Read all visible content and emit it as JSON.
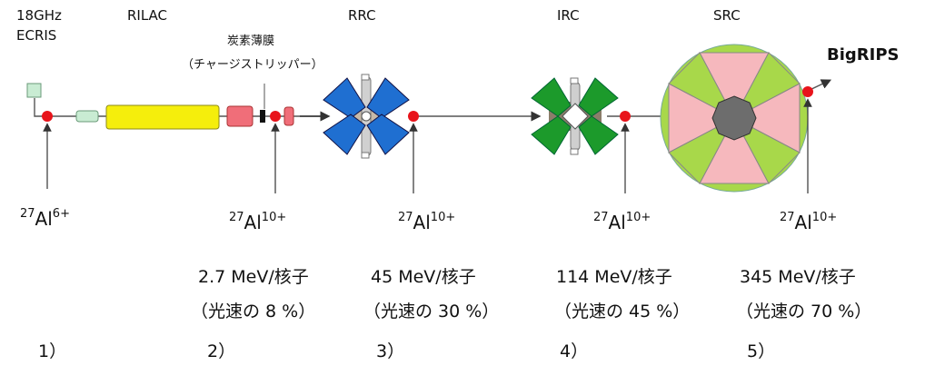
{
  "labels": {
    "ecris_line1": "18GHz",
    "ecris_line2": "ECRIS",
    "rilac": "RILAC",
    "carbon_foil": "炭素薄膜",
    "charge_stripper": "（チャージストリッパー）",
    "rrc": "RRC",
    "irc": "IRC",
    "src": "SRC",
    "bigrips": "BigRIPS"
  },
  "stages": [
    {
      "mass": "27",
      "element": "Al",
      "charge": "6+",
      "energy": "",
      "fraction": "",
      "step": "1）"
    },
    {
      "mass": "27",
      "element": "Al",
      "charge": "10+",
      "energy": "2.7 MeV/核子",
      "fraction": "（光速の 8 %）",
      "step": "2）"
    },
    {
      "mass": "27",
      "element": "Al",
      "charge": "10+",
      "energy": "45 MeV/核子",
      "fraction": "（光速の 30 %）",
      "step": "3）"
    },
    {
      "mass": "27",
      "element": "Al",
      "charge": "10+",
      "energy": "114 MeV/核子",
      "fraction": "（光速の 45 %）",
      "step": "4）"
    },
    {
      "mass": "27",
      "element": "Al",
      "charge": "10+",
      "energy": "345 MeV/核子",
      "fraction": "（光速の 70 %）",
      "step": "5）"
    }
  ],
  "colors": {
    "beamline": "#555555",
    "marker": "#e8141b",
    "ecris": "#c9ecd3",
    "rilac": "#f5ee0c",
    "rilac_end": "#f06e79",
    "rrc_magnet": "#1f6fd1",
    "irc_magnet": "#1c9a2b",
    "src_sector_green": "#a8d84a",
    "src_sector_pink": "#f6b8bd",
    "core": "#6d6d6d"
  }
}
